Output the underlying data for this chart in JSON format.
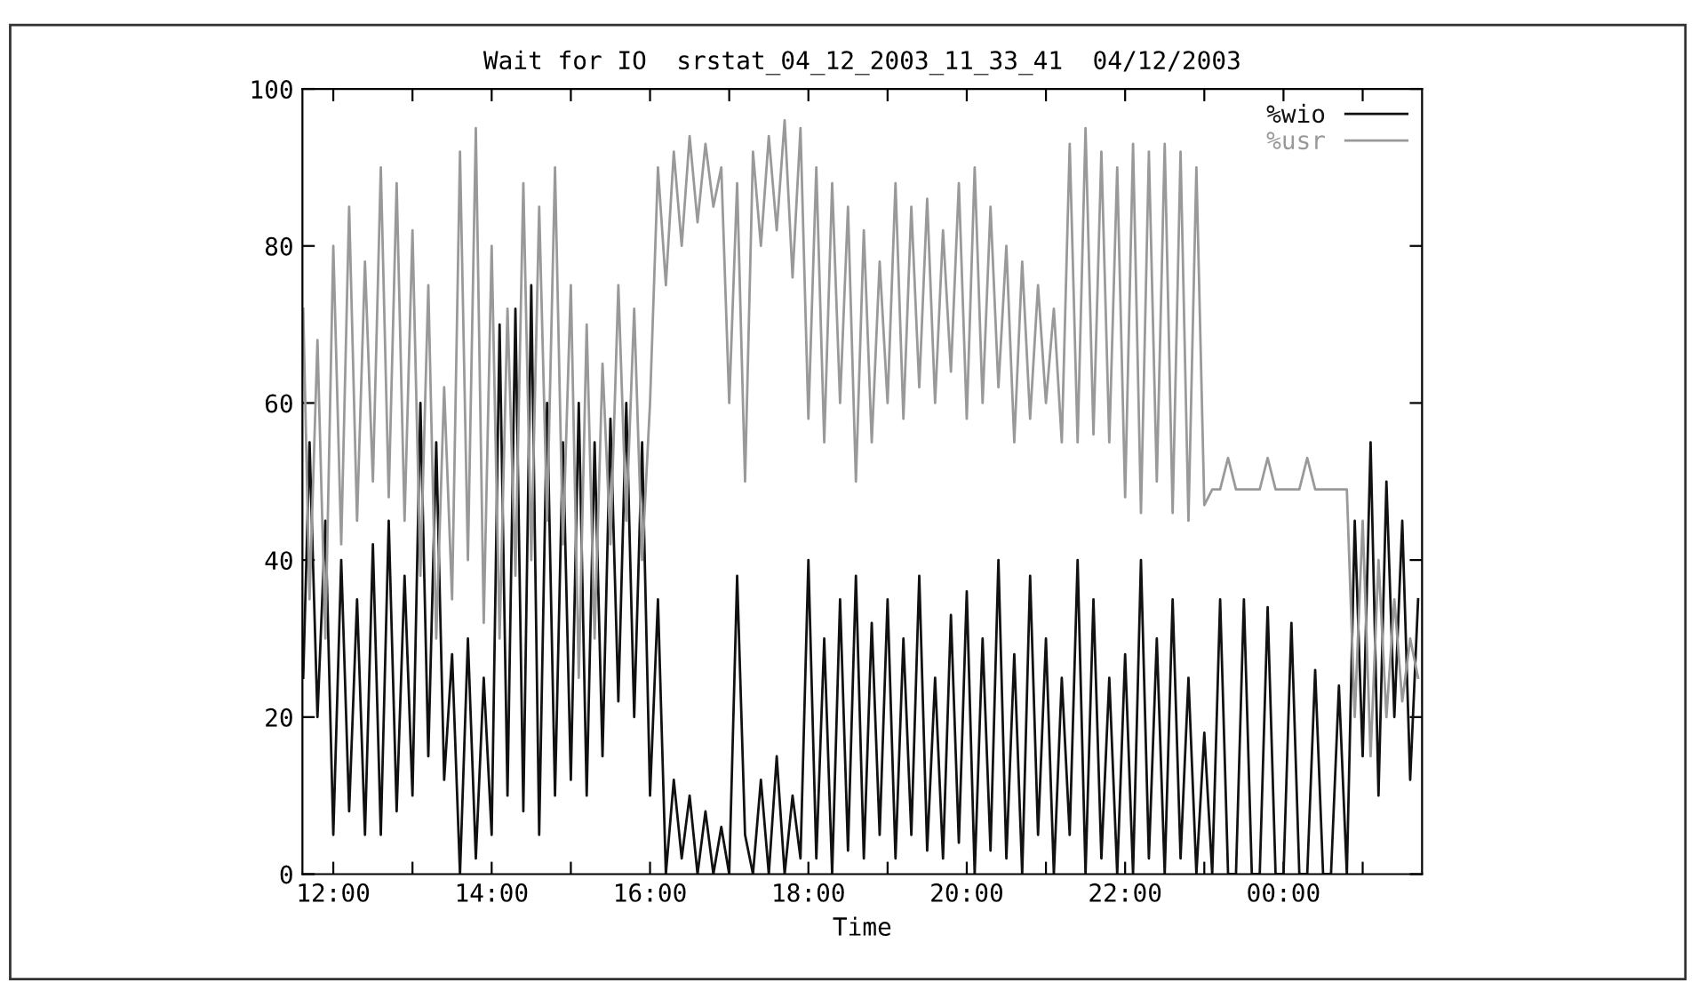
{
  "chart_data": {
    "type": "line",
    "title": "Wait for IO  srstat_04_12_2003_11_33_41  04/12/2003",
    "xlabel": "Time",
    "x": [
      11.62,
      11.7,
      11.8,
      11.9,
      12.0,
      12.1,
      12.2,
      12.3,
      12.4,
      12.5,
      12.6,
      12.7,
      12.8,
      12.9,
      13.0,
      13.1,
      13.2,
      13.3,
      13.4,
      13.5,
      13.6,
      13.7,
      13.8,
      13.9,
      14.0,
      14.1,
      14.2,
      14.3,
      14.4,
      14.5,
      14.6,
      14.7,
      14.8,
      14.9,
      15.0,
      15.1,
      15.2,
      15.3,
      15.4,
      15.5,
      15.6,
      15.7,
      15.8,
      15.9,
      16.0,
      16.1,
      16.2,
      16.3,
      16.4,
      16.5,
      16.6,
      16.7,
      16.8,
      16.9,
      17.0,
      17.1,
      17.2,
      17.3,
      17.4,
      17.5,
      17.6,
      17.7,
      17.8,
      17.9,
      18.0,
      18.1,
      18.2,
      18.3,
      18.4,
      18.5,
      18.6,
      18.7,
      18.8,
      18.9,
      19.0,
      19.1,
      19.2,
      19.3,
      19.4,
      19.5,
      19.6,
      19.7,
      19.8,
      19.9,
      20.0,
      20.1,
      20.2,
      20.3,
      20.4,
      20.5,
      20.6,
      20.7,
      20.8,
      20.9,
      21.0,
      21.1,
      21.2,
      21.3,
      21.4,
      21.5,
      21.6,
      21.7,
      21.8,
      21.9,
      22.0,
      22.1,
      22.2,
      22.3,
      22.4,
      22.5,
      22.6,
      22.7,
      22.8,
      22.9,
      23.0,
      23.1,
      23.2,
      23.3,
      23.4,
      23.5,
      23.6,
      23.7,
      23.8,
      23.9,
      24.0,
      24.1,
      24.2,
      24.3,
      24.4,
      24.5,
      24.6,
      24.7,
      24.8,
      24.9,
      25.0,
      25.1,
      25.2,
      25.3,
      25.4,
      25.5,
      25.6,
      25.7
    ],
    "series": [
      {
        "name": "%wio",
        "color": "#111111",
        "values": [
          25,
          55,
          20,
          45,
          5,
          40,
          8,
          35,
          5,
          42,
          5,
          45,
          8,
          38,
          10,
          60,
          15,
          55,
          12,
          28,
          0,
          30,
          2,
          25,
          5,
          70,
          10,
          72,
          8,
          75,
          5,
          60,
          10,
          55,
          12,
          60,
          10,
          55,
          15,
          58,
          22,
          60,
          20,
          55,
          10,
          35,
          0,
          12,
          2,
          10,
          0,
          8,
          0,
          6,
          0,
          38,
          5,
          0,
          12,
          0,
          15,
          0,
          10,
          2,
          40,
          2,
          30,
          0,
          35,
          3,
          38,
          2,
          32,
          5,
          35,
          2,
          30,
          5,
          38,
          3,
          25,
          2,
          33,
          4,
          36,
          0,
          30,
          3,
          40,
          2,
          28,
          0,
          38,
          5,
          30,
          0,
          25,
          5,
          40,
          0,
          35,
          2,
          25,
          0,
          28,
          0,
          40,
          2,
          30,
          0,
          35,
          2,
          25,
          0,
          18,
          0,
          35,
          0,
          0,
          35,
          0,
          0,
          34,
          0,
          0,
          32,
          0,
          0,
          26,
          0,
          0,
          24,
          0,
          45,
          15,
          55,
          10,
          50,
          20,
          45,
          12,
          35
        ]
      },
      {
        "name": "%usr",
        "color": "#999999",
        "values": [
          72,
          35,
          68,
          30,
          80,
          42,
          85,
          45,
          78,
          50,
          90,
          48,
          88,
          45,
          82,
          38,
          75,
          30,
          62,
          35,
          92,
          40,
          95,
          32,
          80,
          30,
          72,
          38,
          88,
          40,
          85,
          45,
          90,
          42,
          75,
          25,
          70,
          30,
          65,
          42,
          75,
          45,
          72,
          40,
          60,
          90,
          75,
          92,
          80,
          94,
          83,
          93,
          85,
          90,
          60,
          88,
          50,
          92,
          80,
          94,
          82,
          96,
          76,
          95,
          58,
          90,
          55,
          88,
          60,
          85,
          50,
          82,
          55,
          78,
          60,
          88,
          58,
          85,
          62,
          86,
          60,
          82,
          64,
          88,
          58,
          90,
          60,
          85,
          62,
          80,
          55,
          78,
          58,
          75,
          60,
          72,
          55,
          93,
          55,
          95,
          56,
          92,
          55,
          90,
          48,
          93,
          46,
          92,
          50,
          93,
          46,
          92,
          45,
          90,
          47,
          49,
          49,
          53,
          49,
          49,
          49,
          49,
          53,
          49,
          49,
          49,
          49,
          53,
          49,
          49,
          49,
          49,
          49,
          20,
          45,
          15,
          40,
          20,
          35,
          22,
          30,
          25
        ]
      }
    ],
    "xlim": [
      11.61,
      25.75
    ],
    "xticks": [
      {
        "value": 12,
        "label": "12:00"
      },
      {
        "value": 13,
        "label": null
      },
      {
        "value": 14,
        "label": "14:00"
      },
      {
        "value": 15,
        "label": null
      },
      {
        "value": 16,
        "label": "16:00"
      },
      {
        "value": 17,
        "label": null
      },
      {
        "value": 18,
        "label": "18:00"
      },
      {
        "value": 19,
        "label": null
      },
      {
        "value": 20,
        "label": "20:00"
      },
      {
        "value": 21,
        "label": null
      },
      {
        "value": 22,
        "label": "22:00"
      },
      {
        "value": 23,
        "label": null
      },
      {
        "value": 24,
        "label": "00:00"
      },
      {
        "value": 25,
        "label": null
      }
    ],
    "ylim": [
      0,
      100
    ],
    "yticks": [
      0,
      20,
      40,
      60,
      80,
      100
    ],
    "grid": false,
    "legend": "top right",
    "line_style": "solid",
    "marker": "none"
  }
}
